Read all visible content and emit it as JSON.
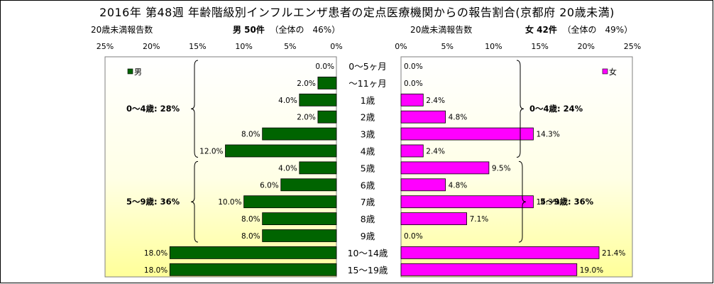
{
  "title": "2016年 第48週 年齢階級別インフルエンザ患者の定点医療機関からの報告割合(京都府 20歳未満)",
  "left_header": {
    "count_label": "20歳未満報告数",
    "group": "男 50件",
    "share": "（全体の　46%）"
  },
  "right_header": {
    "count_label": "20歳未満報告数",
    "group": "女 42件",
    "share": "（全体の　49%）"
  },
  "left_axis_ticks": [
    "25%",
    "20%",
    "15%",
    "10%",
    "5%",
    "0%"
  ],
  "right_axis_ticks": [
    "0%",
    "5%",
    "10%",
    "15%",
    "20%",
    "25%"
  ],
  "colors": {
    "male": "#006400",
    "female": "#ff00ff",
    "plot_bg_bottom": "#ffff99",
    "frame": "#7f7f7f"
  },
  "chart_data": [
    {
      "type": "bar",
      "orientation": "horizontal",
      "direction": "right-to-left",
      "categories": [
        "0～5ヶ月",
        "～11ヶ月",
        "1歳",
        "2歳",
        "3歳",
        "4歳",
        "5歳",
        "6歳",
        "7歳",
        "8歳",
        "9歳",
        "10～14歳",
        "15～19歳"
      ],
      "series": [
        {
          "name": "男",
          "values": [
            0.0,
            2.0,
            4.0,
            2.0,
            8.0,
            12.0,
            4.0,
            6.0,
            10.0,
            8.0,
            8.0,
            18.0,
            18.0
          ],
          "labels": [
            "0.0%",
            "2.0%",
            "4.0%",
            "2.0%",
            "8.0%",
            "12.0%",
            "4.0%",
            "6.0%",
            "10.0%",
            "8.0%",
            "8.0%",
            "18.0%",
            "18.0%"
          ]
        }
      ],
      "xlim": [
        0,
        25
      ],
      "legend": "top-left",
      "annotations": [
        "0～4歳: 28%",
        "5～9歳: 36%"
      ]
    },
    {
      "type": "bar",
      "orientation": "horizontal",
      "direction": "left-to-right",
      "categories": [
        "0～5ヶ月",
        "～11ヶ月",
        "1歳",
        "2歳",
        "3歳",
        "4歳",
        "5歳",
        "6歳",
        "7歳",
        "8歳",
        "9歳",
        "10～14歳",
        "15～19歳"
      ],
      "series": [
        {
          "name": "女",
          "values": [
            0.0,
            0.0,
            2.4,
            4.8,
            14.3,
            2.4,
            9.5,
            4.8,
            14.3,
            7.1,
            0.0,
            21.4,
            19.0
          ],
          "labels": [
            "0.0%",
            "0.0%",
            "2.4%",
            "4.8%",
            "14.3%",
            "2.4%",
            "9.5%",
            "4.8%",
            "14.3%",
            "7.1%",
            "0.0%",
            "21.4%",
            "19.0%"
          ]
        }
      ],
      "xlim": [
        0,
        25
      ],
      "legend": "top-right",
      "annotations": [
        "0～4歳: 24%",
        "5～9歳: 36%"
      ]
    }
  ]
}
